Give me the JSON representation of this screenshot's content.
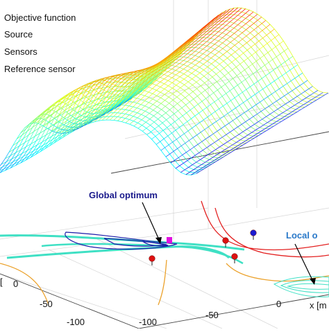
{
  "legend": [
    {
      "key": "objective",
      "label": "Objective function"
    },
    {
      "key": "source",
      "label": "Source"
    },
    {
      "key": "sensors",
      "label": "Sensors"
    },
    {
      "key": "reference",
      "label": "Reference sensor"
    }
  ],
  "annotations": {
    "global_optimum": "Global optimum",
    "local_optimum": "Local o"
  },
  "axis_labels": {
    "x_partial": "x [m",
    "y_partial": "["
  },
  "tick_labels": {
    "left_axis": [
      "0",
      "-50",
      "-100"
    ],
    "front_axis": [
      "-100",
      "-50",
      "0"
    ],
    "right_axis": [
      "-50",
      "0"
    ]
  },
  "colors": {
    "global_label": "#1a1a8c",
    "local_label": "#2a79c9",
    "sensor": "#dd1111",
    "reference_sensor": "#1b1bd0",
    "source": "#e010e0",
    "contour_cyan": "#3fe0c4",
    "contour_red": "#e32020",
    "contour_orange": "#eba12a",
    "contour_blue": "#1a1aa8"
  },
  "chart_data": {
    "type": "surface",
    "title": "",
    "series": [
      {
        "name": "Objective function",
        "kind": "3d mesh surface (jet colormap) with contour projection on floor"
      },
      {
        "name": "Source",
        "kind": "marker",
        "color": "magenta"
      },
      {
        "name": "Sensors",
        "kind": "marker",
        "color": "red"
      },
      {
        "name": "Reference sensor",
        "kind": "marker",
        "color": "blue"
      }
    ],
    "x_ticks": [
      -100,
      -50,
      0
    ],
    "y_ticks": [
      -100,
      -50,
      0
    ],
    "xlabel": "x [m",
    "ylabel": "",
    "grid": true,
    "legend_position": "top-left",
    "colormap": "jet",
    "annotations": [
      "Global optimum",
      "Local o"
    ]
  }
}
